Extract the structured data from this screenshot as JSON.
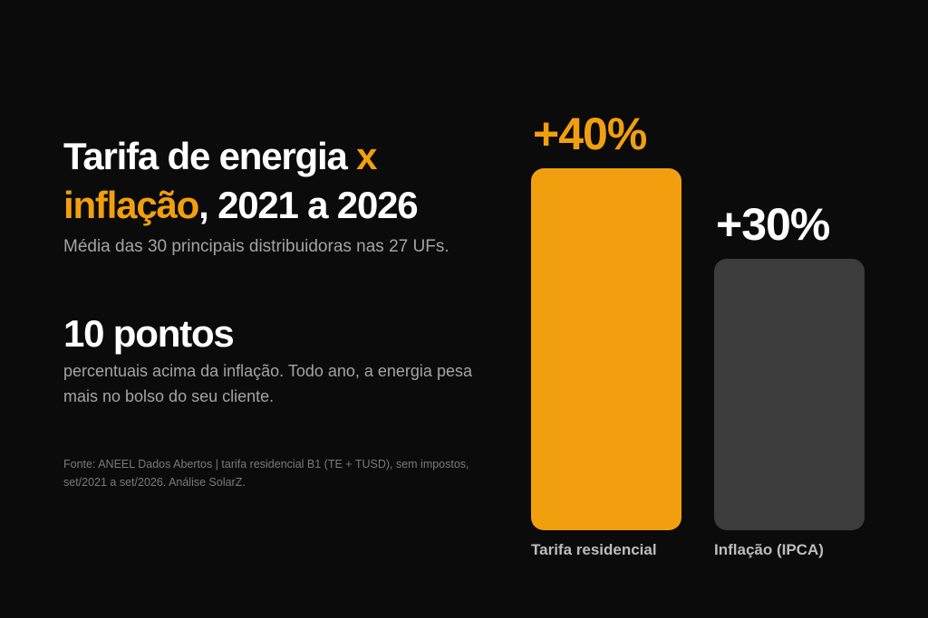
{
  "title": {
    "part1": "Tarifa de energia ",
    "part2": "x",
    "part3": "inflação",
    "part4": ", 2021 a 2026"
  },
  "subtitle": "Média das 30 principais distribuidoras nas 27 UFs.",
  "highlight": {
    "value": "10 pontos",
    "description": "percentuais acima da inflação. Todo ano, a energia pesa mais no bolso do seu cliente."
  },
  "source": "Fonte: ANEEL Dados Abertos | tarifa residencial B1 (TE + TUSD), sem impostos, set/2021 a set/2026. Análise SolarZ.",
  "colors": {
    "background": "#0b0b0b",
    "accent": "#f29f0f",
    "muted_bar": "#3c3c3c",
    "text": "#ffffff"
  },
  "chart_data": {
    "type": "bar",
    "title": "",
    "xlabel": "",
    "ylabel": "",
    "categories": [
      "Tarifa residencial",
      "Inflação (IPCA)"
    ],
    "values": [
      40,
      30
    ],
    "value_labels": [
      "+40%",
      "+30%"
    ],
    "colors": [
      "#f29f0f",
      "#3c3c3c"
    ],
    "label_colors": [
      "#f29f0f",
      "#ffffff"
    ],
    "ylim": [
      0,
      40
    ],
    "grid": false,
    "legend": "none"
  }
}
